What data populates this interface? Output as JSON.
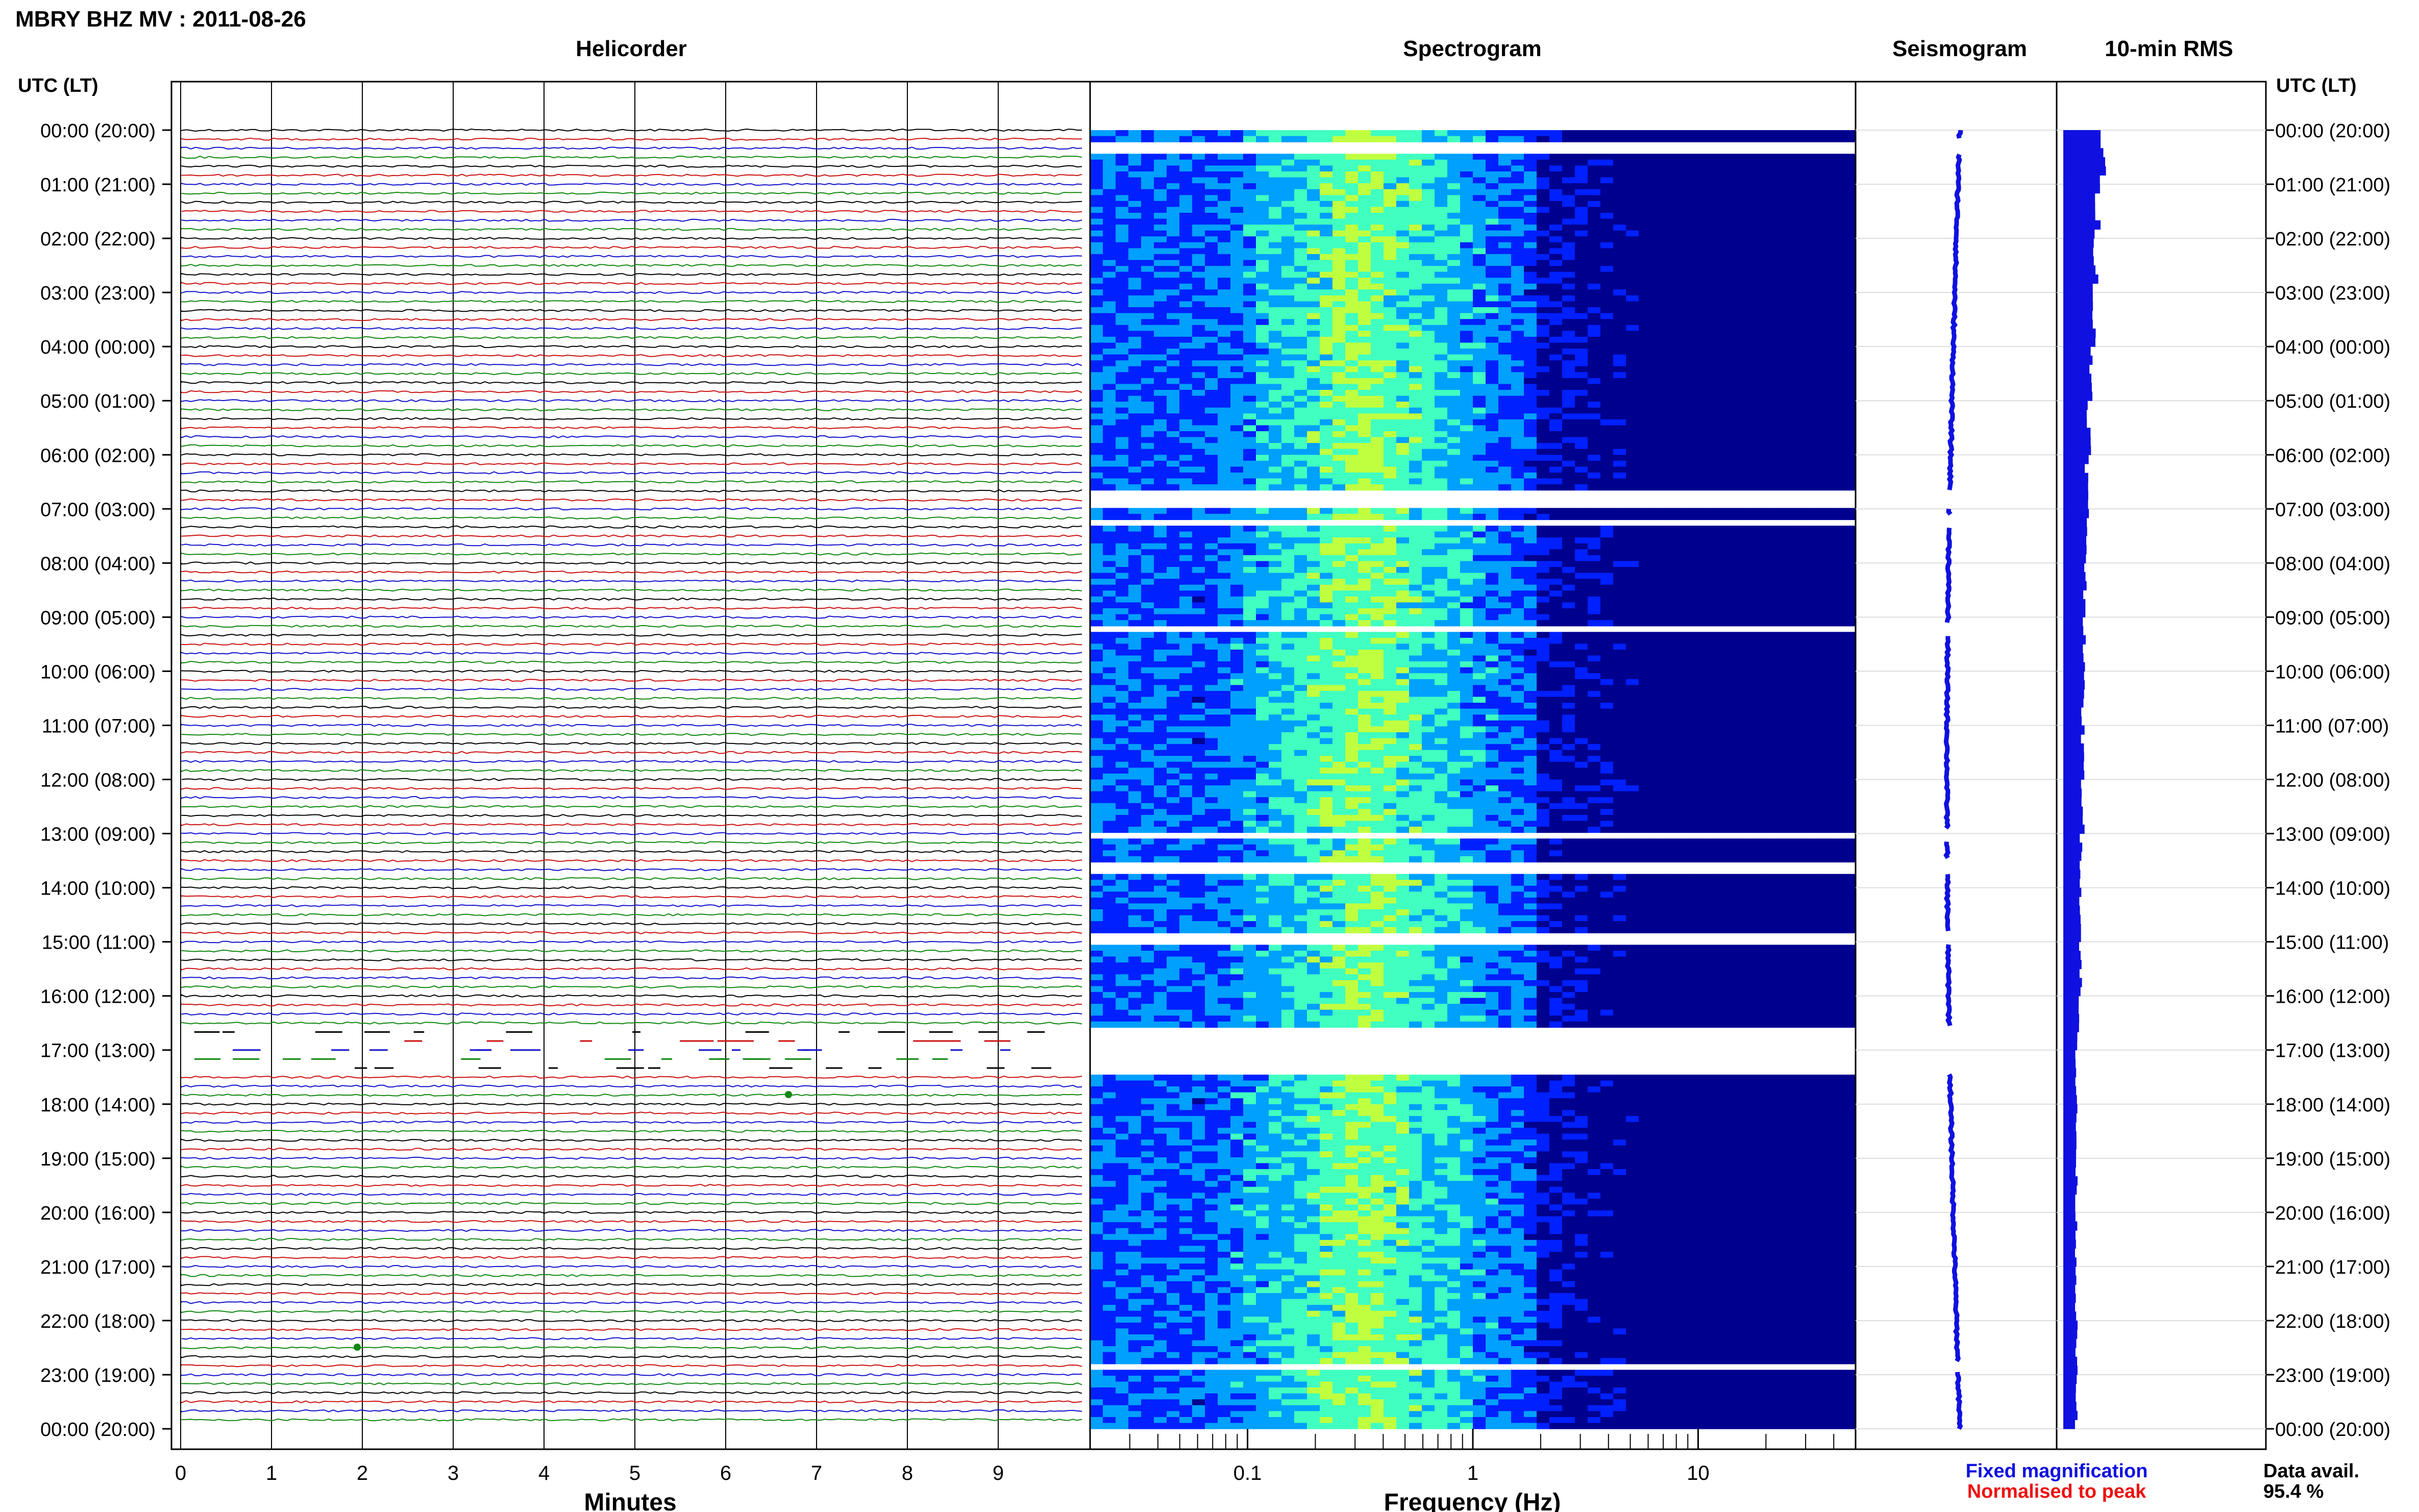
{
  "title": "MBRY BHZ MV : 2011-08-26",
  "panels": {
    "helicorder": "Helicorder",
    "spectrogram": "Spectrogram",
    "seismogram": "Seismogram",
    "rms": "10-min RMS"
  },
  "time_header": "UTC (LT)",
  "time_labels": [
    "00:00 (20:00)",
    "01:00 (21:00)",
    "02:00 (22:00)",
    "03:00 (23:00)",
    "04:00 (00:00)",
    "05:00 (01:00)",
    "06:00 (02:00)",
    "07:00 (03:00)",
    "08:00 (04:00)",
    "09:00 (05:00)",
    "10:00 (06:00)",
    "11:00 (07:00)",
    "12:00 (08:00)",
    "13:00 (09:00)",
    "14:00 (10:00)",
    "15:00 (11:00)",
    "16:00 (12:00)",
    "17:00 (13:00)",
    "18:00 (14:00)",
    "19:00 (15:00)",
    "20:00 (16:00)",
    "21:00 (17:00)",
    "22:00 (18:00)",
    "23:00 (19:00)",
    "00:00 (20:00)"
  ],
  "helicorder_axis": {
    "label": "Minutes",
    "ticks": [
      "0",
      "1",
      "2",
      "3",
      "4",
      "5",
      "6",
      "7",
      "8",
      "9"
    ]
  },
  "spectrogram_axis": {
    "label": "Frequency (Hz)",
    "ticks": [
      "0.1",
      "1",
      "10"
    ]
  },
  "legend": {
    "fixed": "Fixed magnification",
    "normalised": "Normalised to peak",
    "fixed_color": "#1010e0",
    "normalised_color": "#ee1111"
  },
  "data_avail": {
    "label": "Data avail.",
    "value": "95.4 %"
  },
  "trace_colors": [
    "#000000",
    "#cc1111",
    "#1111cc",
    "#118811"
  ],
  "spectrogram_colormap": [
    "#00008f",
    "#0020ff",
    "#00a0ff",
    "#40ffc0",
    "#c0ff40"
  ],
  "chart_data": {
    "type": "heatmap",
    "x": {
      "label": "Frequency (Hz)",
      "scale": "log",
      "range": [
        0.02,
        50
      ]
    },
    "y": {
      "label": "UTC (LT)",
      "range_hours": [
        0,
        24
      ]
    },
    "peak_frequency_hz": 0.33,
    "data_gaps_utc_hours": [
      [
        0.2,
        0.4
      ],
      [
        6.7,
        6.95
      ],
      [
        7.15,
        7.3
      ],
      [
        9.15,
        9.3
      ],
      [
        12.95,
        13.1
      ],
      [
        13.5,
        13.7
      ],
      [
        14.85,
        15.0
      ],
      [
        16.6,
        17.4
      ],
      [
        22.8,
        22.9
      ]
    ],
    "rms_relative": [
      0.9,
      0.8,
      0.75,
      0.7,
      0.65,
      0.6,
      0.55,
      0.55,
      0.5,
      0.5,
      0.45,
      0.45,
      0.45,
      0.42,
      0.4,
      0.4,
      0.35,
      0.3,
      0.3,
      0.3,
      0.3,
      0.3,
      0.3,
      0.3
    ],
    "data_availability_percent": 95.4
  }
}
